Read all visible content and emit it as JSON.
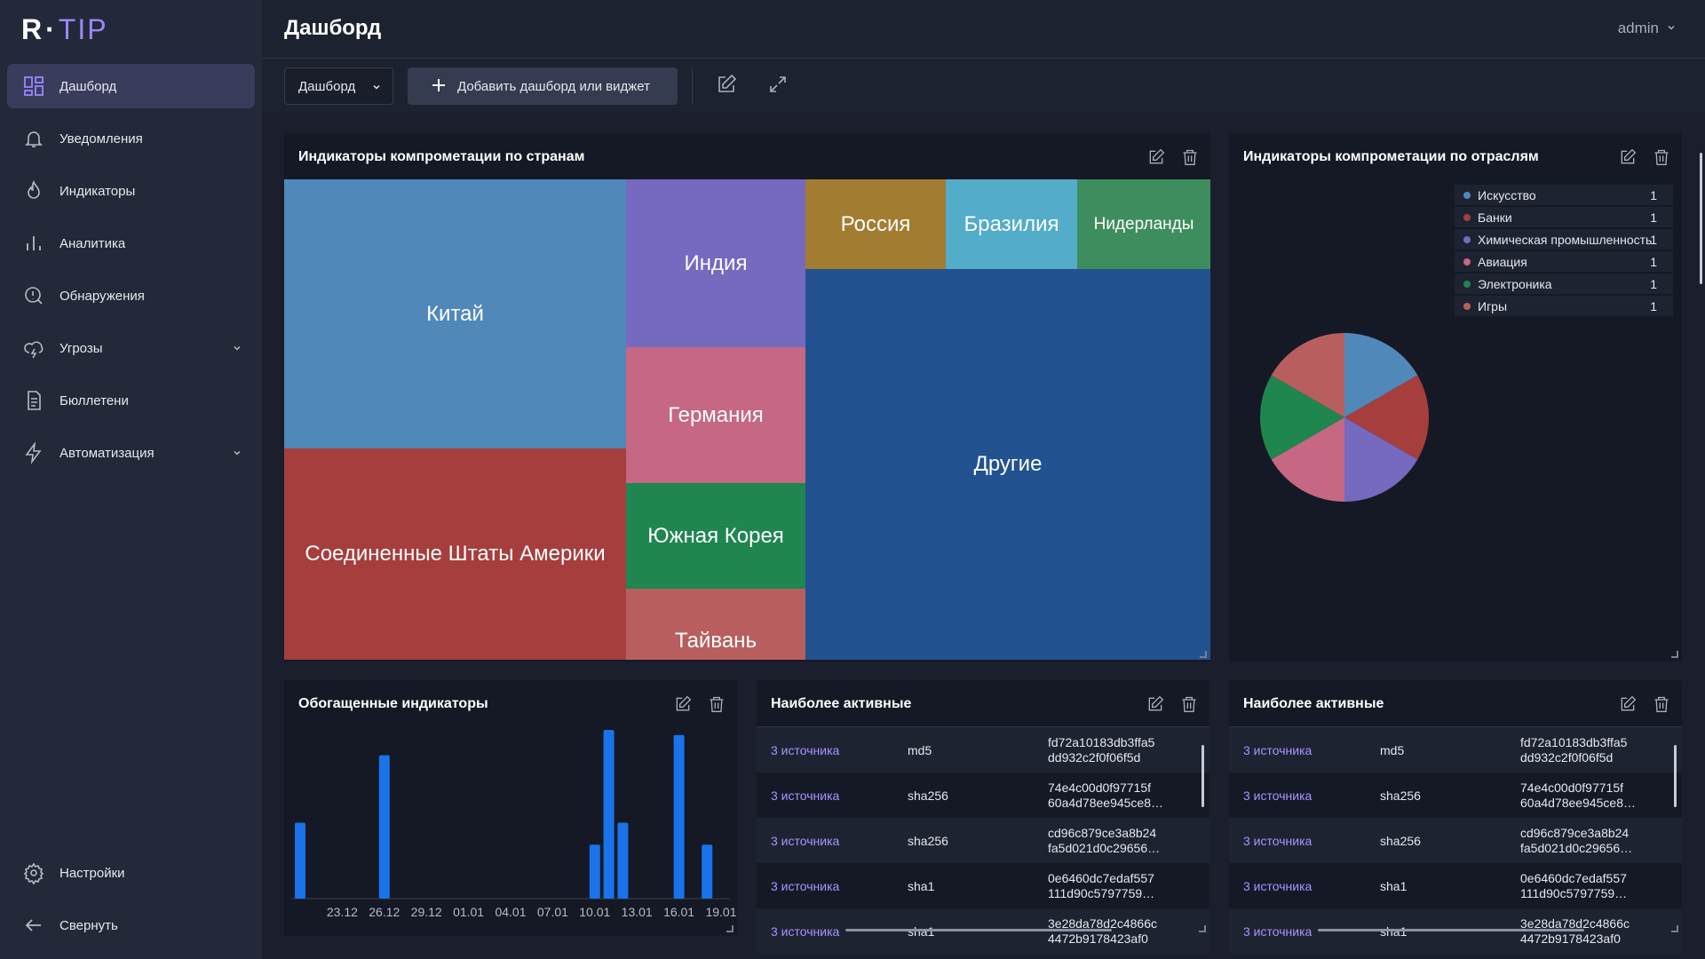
{
  "logo": {
    "r": "R",
    "dot": "·",
    "tip": "TIP"
  },
  "sidebar": {
    "items": [
      {
        "label": "Дашборд",
        "icon": "dashboard-icon"
      },
      {
        "label": "Уведомления",
        "icon": "bell-icon"
      },
      {
        "label": "Индикаторы",
        "icon": "flame-icon"
      },
      {
        "label": "Аналитика",
        "icon": "bar-chart-icon"
      },
      {
        "label": "Обнаружения",
        "icon": "alert-circle-icon"
      },
      {
        "label": "Угрозы",
        "icon": "cloud-lightning-icon"
      },
      {
        "label": "Бюллетени",
        "icon": "document-icon"
      },
      {
        "label": "Автоматизация",
        "icon": "lightning-icon"
      }
    ],
    "bottom": [
      {
        "label": "Настройки",
        "icon": "gear-icon"
      },
      {
        "label": "Свернуть",
        "icon": "arrow-left-icon"
      }
    ]
  },
  "header": {
    "title": "Дашборд",
    "user": "admin"
  },
  "toolbar": {
    "dashboard_select": "Дашборд",
    "add_label": "Добавить дашборд или виджет"
  },
  "widgets": {
    "countries": {
      "title": "Индикаторы компрометации по странам"
    },
    "industries": {
      "title": "Индикаторы компрометации по отраслям"
    },
    "enriched": {
      "title": "Обогащенные индикаторы"
    },
    "active1": {
      "title": "Наиболее активные"
    },
    "active2": {
      "title": "Наиболее активные"
    }
  },
  "treemap": [
    {
      "label": "Китай",
      "color": "#5089b9"
    },
    {
      "label": "Соединенные Штаты Америки",
      "color": "#a63e3e"
    },
    {
      "label": "Индия",
      "color": "#7669c0"
    },
    {
      "label": "Германия",
      "color": "#c66784"
    },
    {
      "label": "Южная Корея",
      "color": "#1f8650"
    },
    {
      "label": "Тайвань",
      "color": "#b95e5e"
    },
    {
      "label": "Россия",
      "color": "#a27d31"
    },
    {
      "label": "Бразилия",
      "color": "#52acca"
    },
    {
      "label": "Нидерланды",
      "color": "#3e8d5f"
    },
    {
      "label": "Другие",
      "color": "#22528f"
    }
  ],
  "legend": [
    {
      "label": "Искусство",
      "value": "1",
      "color": "#5089b9"
    },
    {
      "label": "Банки",
      "value": "1",
      "color": "#a63e3e"
    },
    {
      "label": "Химическая промышленность",
      "value": "1",
      "color": "#7669c0"
    },
    {
      "label": "Авиация",
      "value": "1",
      "color": "#c66784"
    },
    {
      "label": "Электроника",
      "value": "1",
      "color": "#1f8650"
    },
    {
      "label": "Игры",
      "value": "1",
      "color": "#b95e5e"
    }
  ],
  "chart_data": [
    {
      "type": "pie",
      "title": "Индикаторы компрометации по отраслям",
      "categories": [
        "Искусство",
        "Банки",
        "Химическая промышленность",
        "Авиация",
        "Электроника",
        "Игры"
      ],
      "values": [
        1,
        1,
        1,
        1,
        1,
        1
      ],
      "colors": [
        "#5089b9",
        "#a63e3e",
        "#7669c0",
        "#c66784",
        "#1f8650",
        "#b95e5e"
      ],
      "legend": "top-right"
    },
    {
      "type": "bar",
      "title": "Обогащенные индикаторы",
      "x_ticks": [
        "23.12",
        "26.12",
        "29.12",
        "01.01",
        "04.01",
        "07.01",
        "10.01",
        "13.01",
        "16.01",
        "19.01"
      ],
      "bars": [
        {
          "x": "20.12",
          "value": 45
        },
        {
          "x": "26.12",
          "value": 85
        },
        {
          "x": "10.01",
          "value": 32
        },
        {
          "x": "11.01",
          "value": 100
        },
        {
          "x": "12.01",
          "value": 45
        },
        {
          "x": "16.01",
          "value": 97
        },
        {
          "x": "18.01",
          "value": 32
        }
      ],
      "x_range": [
        "20.12",
        "19.01"
      ],
      "ylim": [
        0,
        100
      ],
      "grid": false,
      "color": "#1a73e8"
    }
  ],
  "active_rows": [
    {
      "source": "3 источника",
      "type": "md5",
      "hash": "fd72a10183db3ffa5\ndd932c2f0f06f5d"
    },
    {
      "source": "3 источника",
      "type": "sha256",
      "hash": "74e4c00d0f97715f\n60a4d78ee945ce8…"
    },
    {
      "source": "3 источника",
      "type": "sha256",
      "hash": "cd96c879ce3a8b24\nfa5d021d0c29656…"
    },
    {
      "source": "3 источника",
      "type": "sha1",
      "hash": "0e6460dc7edaf557\n111d90c5797759…"
    },
    {
      "source": "3 источника",
      "type": "sha1",
      "hash": "3e28da78d2c4866c\n4472b9178423af0"
    }
  ]
}
